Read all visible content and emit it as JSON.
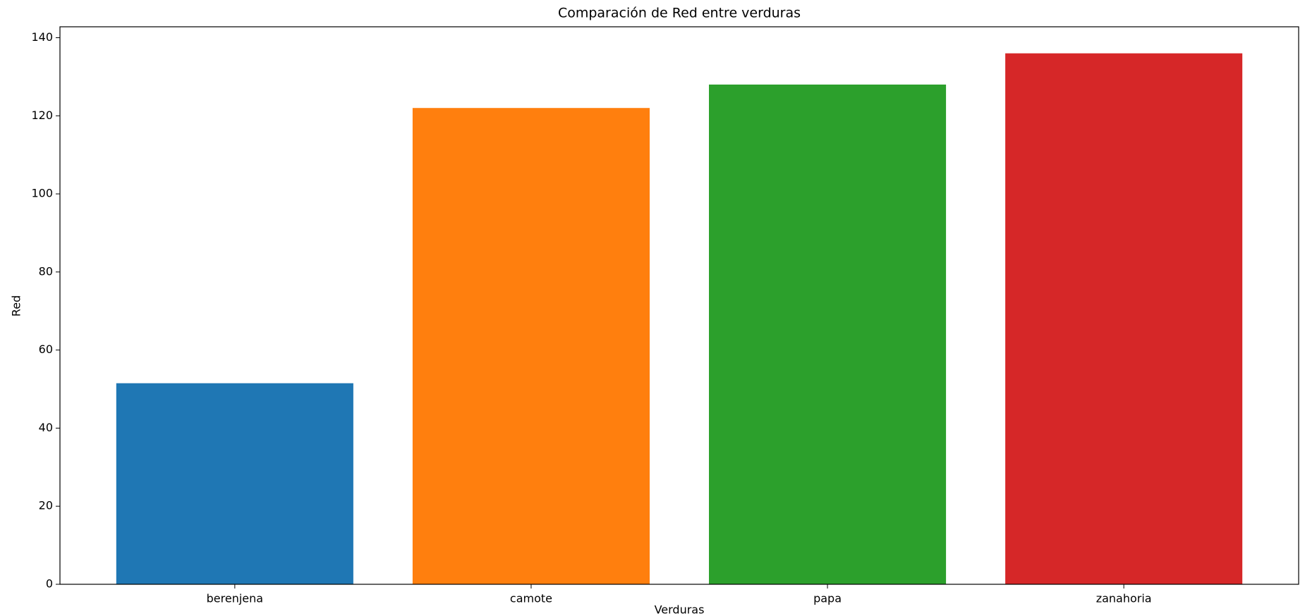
{
  "chart_data": {
    "type": "bar",
    "title": "Comparación de Red entre verduras",
    "x_label": "Verduras",
    "y_label": "Red",
    "categories": [
      "berenjena",
      "camote",
      "papa",
      "zanahoria"
    ],
    "values": [
      51.5,
      122,
      128,
      136
    ],
    "colors": [
      "#1f77b4",
      "#ff7f0e",
      "#2ca02c",
      "#d62728"
    ],
    "ylim": [
      0,
      142.8
    ],
    "yticks": [
      0,
      20,
      40,
      60,
      80,
      100,
      120,
      140
    ],
    "grid": false
  }
}
